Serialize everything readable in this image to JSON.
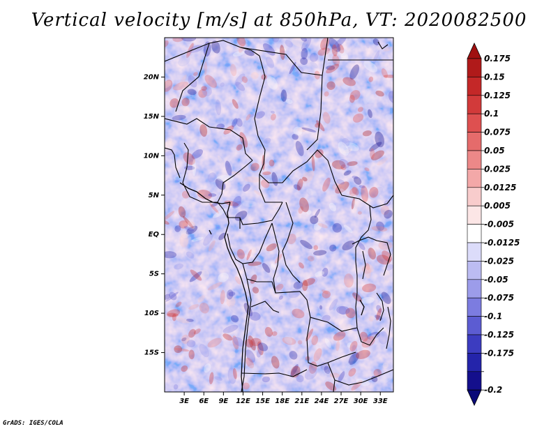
{
  "title": "Vertical velocity [m/s] at 850hPa, VT: 2020082500",
  "credit": "GrADS: IGES/COLA",
  "map": {
    "lat_labels": [
      "20N",
      "15N",
      "10N",
      "5N",
      "EQ",
      "5S",
      "10S",
      "15S"
    ],
    "lat_values": [
      20,
      15,
      10,
      5,
      0,
      -5,
      -10,
      -15
    ],
    "lon_labels": [
      "3E",
      "6E",
      "9E",
      "12E",
      "15E",
      "18E",
      "21E",
      "24E",
      "27E",
      "30E",
      "33E"
    ],
    "lon_values": [
      3,
      6,
      9,
      12,
      15,
      18,
      21,
      24,
      27,
      30,
      33
    ],
    "lon_range": [
      0,
      35
    ],
    "lat_range": [
      -20,
      25
    ]
  },
  "colorbar": {
    "labels": [
      "0.175",
      "0.15",
      "0.125",
      "0.1",
      "0.075",
      "0.05",
      "0.025",
      "0.0125",
      "0.005",
      "-0.005",
      "-0.0125",
      "-0.025",
      "-0.05",
      "-0.075",
      "-0.1",
      "-0.125",
      "-0.175",
      "-0.2"
    ],
    "colors": [
      "#b01a1a",
      "#c42828",
      "#d23a3a",
      "#de5050",
      "#e56b6b",
      "#ec8888",
      "#f3a8a8",
      "#f8cccc",
      "#fce6e6",
      "#ffffff",
      "#dcdcfa",
      "#bcbcf2",
      "#9c9cea",
      "#7c7ce0",
      "#5c5cd2",
      "#3c3cc0",
      "#2424aa",
      "#140f8c"
    ],
    "top_color": "#a01010",
    "bottom_color": "#0a0a78"
  }
}
